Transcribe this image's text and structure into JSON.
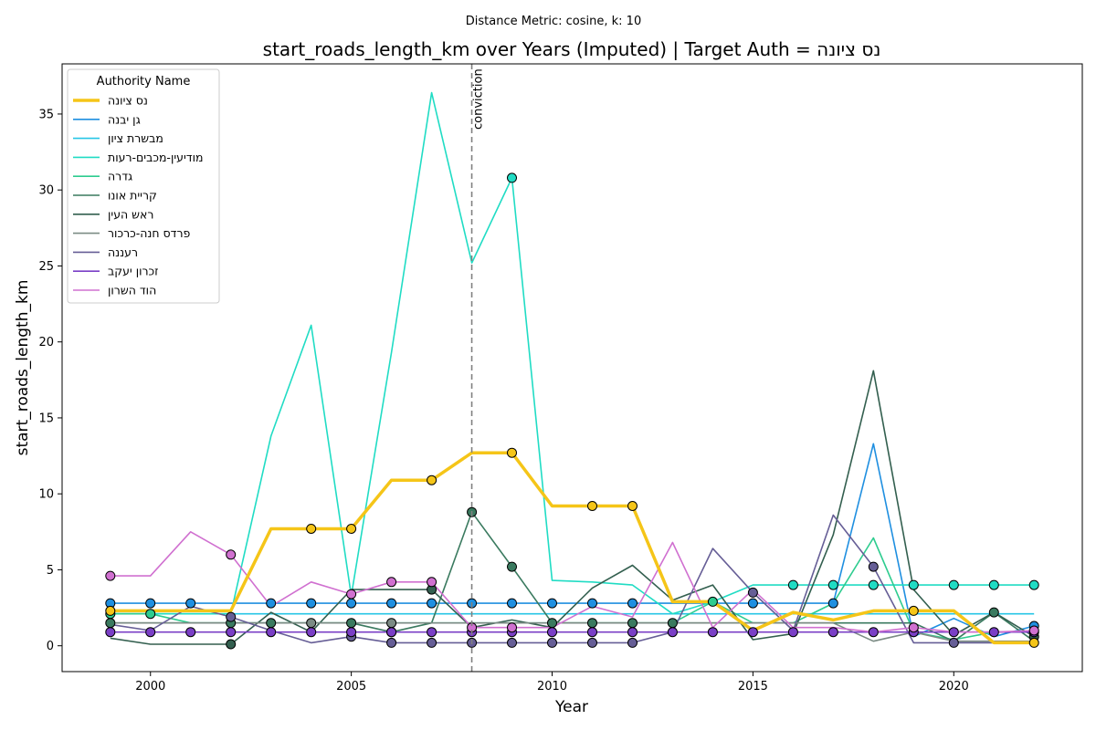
{
  "chart_data": {
    "type": "line",
    "suptitle": "Distance Metric: cosine, k: 10",
    "title": "start_roads_length_km over Years (Imputed) | Target Auth = נס ציונה",
    "xlabel": "Year",
    "ylabel": "start_roads_length_km",
    "xlim": [
      1997.8,
      2023.2
    ],
    "ylim": [
      -1.7,
      38.3
    ],
    "xticks": [
      2000,
      2005,
      2010,
      2015,
      2020
    ],
    "yticks": [
      0,
      5,
      10,
      15,
      20,
      25,
      30,
      35
    ],
    "grid": false,
    "legend": {
      "title": "Authority Name",
      "position": "top-left"
    },
    "annotation": {
      "text": "conviction",
      "x": 2008
    },
    "x": [
      1999,
      2000,
      2001,
      2002,
      2003,
      2004,
      2005,
      2006,
      2007,
      2008,
      2009,
      2010,
      2011,
      2012,
      2013,
      2014,
      2015,
      2016,
      2017,
      2018,
      2019,
      2020,
      2021,
      2022
    ],
    "series": [
      {
        "name": "נס ציונה",
        "color": "#f5c518",
        "target": true,
        "values": [
          2.3,
          2.3,
          2.3,
          2.3,
          7.7,
          7.7,
          7.7,
          10.9,
          10.9,
          12.7,
          12.7,
          9.2,
          9.2,
          9.2,
          2.9,
          2.9,
          1.0,
          2.2,
          1.7,
          2.3,
          2.3,
          2.3,
          0.2,
          0.2
        ],
        "markers": [
          1999,
          2004,
          2005,
          2007,
          2009,
          2011,
          2012,
          2019,
          2022
        ]
      },
      {
        "name": "גן יבנה",
        "color": "#1f8fe0",
        "values": [
          2.8,
          2.8,
          2.8,
          2.8,
          2.8,
          2.8,
          2.8,
          2.8,
          2.8,
          2.8,
          2.8,
          2.8,
          2.8,
          2.8,
          2.8,
          2.8,
          2.8,
          2.8,
          2.8,
          13.3,
          0.6,
          1.8,
          0.6,
          1.3
        ],
        "markers": [
          1999,
          2000,
          2001,
          2003,
          2004,
          2005,
          2006,
          2007,
          2008,
          2009,
          2010,
          2011,
          2012,
          2015,
          2017,
          2022
        ]
      },
      {
        "name": "מבשרת ציון",
        "color": "#26c6e6",
        "values": [
          2.1,
          2.1,
          2.1,
          2.1,
          2.1,
          2.1,
          2.1,
          2.1,
          2.1,
          2.1,
          2.1,
          2.1,
          2.1,
          2.1,
          2.1,
          2.1,
          2.1,
          2.1,
          2.1,
          2.1,
          2.1,
          2.1,
          2.1,
          2.1
        ],
        "markers": []
      },
      {
        "name": "מודיעין-מכבים-רעות",
        "color": "#20dcc4",
        "values": [
          2.1,
          2.1,
          2.1,
          2.1,
          13.8,
          21.1,
          3.3,
          19.3,
          36.4,
          25.2,
          30.8,
          4.3,
          4.2,
          4.0,
          2.1,
          2.9,
          4.0,
          4.0,
          4.0,
          4.0,
          4.0,
          4.0,
          4.0,
          4.0
        ],
        "markers": [
          2009,
          2016,
          2017,
          2018,
          2019,
          2020,
          2021,
          2022
        ]
      },
      {
        "name": "גדרה",
        "color": "#2ecc8f",
        "values": [
          2.1,
          2.1,
          1.5,
          1.5,
          1.5,
          1.5,
          1.5,
          1.5,
          1.5,
          1.5,
          1.5,
          1.5,
          1.5,
          1.5,
          1.5,
          2.9,
          1.5,
          1.5,
          2.8,
          7.1,
          0.9,
          0.4,
          0.9,
          0.9
        ],
        "markers": [
          1999,
          2000,
          2014
        ]
      },
      {
        "name": "קריית אונו",
        "color": "#3a7a5f",
        "values": [
          1.5,
          1.5,
          1.5,
          1.5,
          1.5,
          1.5,
          1.5,
          0.9,
          1.5,
          8.8,
          5.2,
          1.5,
          1.5,
          1.5,
          1.5,
          1.5,
          1.5,
          1.5,
          1.5,
          1.5,
          1.5,
          0.3,
          2.2,
          0.3
        ],
        "markers": [
          1999,
          2002,
          2003,
          2005,
          2006,
          2008,
          2009,
          2010,
          2011,
          2012,
          2013,
          2021
        ]
      },
      {
        "name": "ראש העין",
        "color": "#335f4f",
        "values": [
          0.5,
          0.1,
          0.1,
          0.1,
          2.2,
          0.9,
          3.7,
          3.7,
          3.7,
          1.2,
          1.7,
          1.2,
          3.8,
          5.3,
          3.0,
          4.0,
          0.4,
          0.8,
          7.3,
          18.1,
          3.7,
          0.7,
          2.2,
          0.6
        ],
        "markers": [
          2002,
          2007,
          2022
        ]
      },
      {
        "name": "פרדס חנה-כרכור",
        "color": "#7b8b84",
        "values": [
          1.5,
          1.5,
          1.5,
          1.5,
          1.5,
          1.5,
          1.5,
          1.5,
          1.5,
          1.5,
          1.5,
          1.5,
          1.5,
          1.5,
          1.5,
          1.5,
          1.5,
          1.5,
          1.5,
          0.3,
          0.9,
          0.3,
          0.3,
          0.3
        ],
        "markers": [
          2004,
          2006
        ]
      },
      {
        "name": "רעננה",
        "color": "#665e96",
        "values": [
          1.4,
          1.0,
          2.6,
          1.9,
          1.0,
          0.2,
          0.6,
          0.2,
          0.2,
          0.2,
          0.2,
          0.2,
          0.2,
          0.2,
          0.9,
          6.4,
          3.5,
          1.0,
          8.6,
          5.2,
          0.2,
          0.2,
          0.2,
          0.2
        ],
        "markers": [
          2002,
          2005,
          2006,
          2007,
          2008,
          2009,
          2010,
          2011,
          2012,
          2015,
          2018,
          2020
        ]
      },
      {
        "name": "זכרון יעקב",
        "color": "#7a3fc6",
        "values": [
          0.9,
          0.9,
          0.9,
          0.9,
          0.9,
          0.9,
          0.9,
          0.9,
          0.9,
          0.9,
          0.9,
          0.9,
          0.9,
          0.9,
          0.9,
          0.9,
          0.9,
          0.9,
          0.9,
          0.9,
          0.9,
          0.9,
          0.9,
          0.9
        ],
        "markers": [
          1999,
          2000,
          2001,
          2002,
          2003,
          2004,
          2005,
          2006,
          2007,
          2008,
          2009,
          2010,
          2011,
          2012,
          2013,
          2014,
          2015,
          2016,
          2017,
          2018,
          2019,
          2020,
          2021,
          2022
        ]
      },
      {
        "name": "הוד השרון",
        "color": "#d070d0",
        "values": [
          4.6,
          4.6,
          7.5,
          6.0,
          2.6,
          4.2,
          3.4,
          4.2,
          4.2,
          1.2,
          1.2,
          1.2,
          2.6,
          1.9,
          6.8,
          1.2,
          3.7,
          1.2,
          1.2,
          0.9,
          1.2,
          0.9,
          0.9,
          1.0
        ],
        "markers": [
          1999,
          2002,
          2005,
          2006,
          2007,
          2008,
          2009,
          2019,
          2022
        ]
      }
    ]
  }
}
